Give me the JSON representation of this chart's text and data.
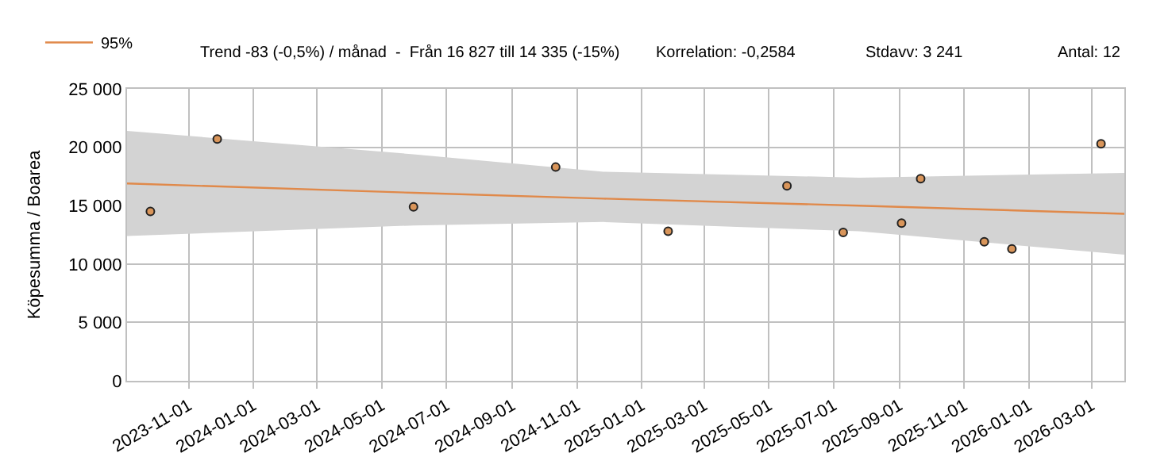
{
  "chart_data": {
    "type": "scatter",
    "ylabel": "Köpesumma / Boarea",
    "annotations": [
      "Trend -83 (-0,5%) / månad  -  Från 16 827 till 14 335 (-15%)",
      "Korrelation: -0,2584",
      "Stdavv: 3 241",
      "Antal: 12"
    ],
    "series": [
      {
        "name": "95%",
        "type": "line",
        "color": "#e0894a",
        "marker": "none",
        "x": [
          "2023-09-04",
          "2024-05-31",
          "2024-11-26",
          "2025-07-25",
          "2026-04-01"
        ],
        "values": [
          16900,
          16100,
          15600,
          15000,
          14300
        ],
        "lower": [
          12400,
          13300,
          13600,
          12800,
          10800
        ],
        "upper": [
          21400,
          19400,
          17900,
          17400,
          17800
        ]
      },
      {
        "color": "#d9955a",
        "marker": "circle",
        "x": [
          "2023-09-26",
          "2023-11-28",
          "2024-05-31",
          "2024-10-12",
          "2025-01-26",
          "2025-05-18",
          "2025-07-10",
          "2025-09-03",
          "2025-09-21",
          "2025-11-20",
          "2025-12-16",
          "2026-03-10"
        ],
        "values": [
          14500,
          20700,
          14900,
          18300,
          12800,
          16700,
          12700,
          13500,
          17300,
          11900,
          11300,
          20300
        ]
      }
    ],
    "xlim": [
      "2023-09-04",
      "2026-04-01"
    ],
    "xticks": [
      "2023-11-01",
      "2024-01-01",
      "2024-03-01",
      "2024-05-01",
      "2024-07-01",
      "2024-09-01",
      "2024-11-01",
      "2025-01-01",
      "2025-03-01",
      "2025-05-01",
      "2025-07-01",
      "2025-09-01",
      "2025-11-01",
      "2026-01-01",
      "2026-03-01"
    ],
    "ylim": [
      0,
      25000
    ],
    "yticks": [
      {
        "value": 0,
        "label": "0"
      },
      {
        "value": 5000,
        "label": "5 000"
      },
      {
        "value": 10000,
        "label": "10 000"
      },
      {
        "value": 15000,
        "label": "15 000"
      },
      {
        "value": 20000,
        "label": "20 000"
      },
      {
        "value": 25000,
        "label": "25 000"
      }
    ],
    "grid": true,
    "legend": "top left"
  }
}
